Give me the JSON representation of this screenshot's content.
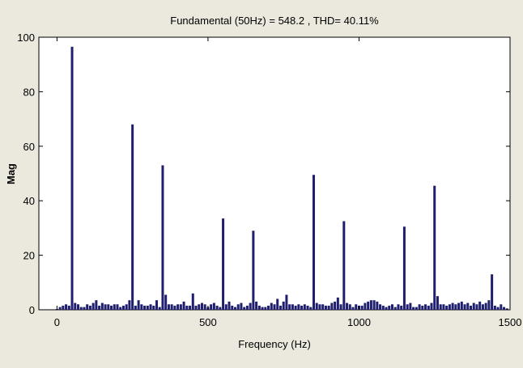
{
  "chart_data": {
    "type": "bar",
    "title": "Fundamental (50Hz) = 548.2 , THD= 40.11%",
    "xlabel": "Frequency (Hz)",
    "ylabel": "Mag",
    "xlim": [
      -60,
      1500
    ],
    "ylim": [
      0,
      100
    ],
    "xticks": [
      0,
      500,
      1000,
      1500
    ],
    "yticks": [
      0,
      20,
      40,
      60,
      80,
      100
    ],
    "grid": false,
    "bar_color": "#1f1f6e",
    "x": [
      0,
      10,
      20,
      30,
      40,
      50,
      60,
      70,
      80,
      90,
      100,
      110,
      120,
      130,
      140,
      150,
      160,
      170,
      180,
      190,
      200,
      210,
      220,
      230,
      240,
      250,
      260,
      270,
      280,
      290,
      300,
      310,
      320,
      330,
      340,
      350,
      360,
      370,
      380,
      390,
      400,
      410,
      420,
      430,
      440,
      450,
      460,
      470,
      480,
      490,
      500,
      510,
      520,
      530,
      540,
      550,
      560,
      570,
      580,
      590,
      600,
      610,
      620,
      630,
      640,
      650,
      660,
      670,
      680,
      690,
      700,
      710,
      720,
      730,
      740,
      750,
      760,
      770,
      780,
      790,
      800,
      810,
      820,
      830,
      840,
      850,
      860,
      870,
      880,
      890,
      900,
      910,
      920,
      930,
      940,
      950,
      960,
      970,
      980,
      990,
      1000,
      1010,
      1020,
      1030,
      1040,
      1050,
      1060,
      1070,
      1080,
      1090,
      1100,
      1110,
      1120,
      1130,
      1140,
      1150,
      1160,
      1170,
      1180,
      1190,
      1200,
      1210,
      1220,
      1230,
      1240,
      1250,
      1260,
      1270,
      1280,
      1290,
      1300,
      1310,
      1320,
      1330,
      1340,
      1350,
      1360,
      1370,
      1380,
      1390,
      1400,
      1410,
      1420,
      1430,
      1440,
      1450,
      1460,
      1470,
      1480,
      1490
    ],
    "values": [
      0.3,
      1.0,
      1.5,
      2.0,
      1.5,
      96.5,
      2.5,
      2.0,
      1.0,
      1.0,
      2.0,
      1.5,
      2.5,
      3.5,
      1.5,
      2.5,
      2.0,
      2.0,
      1.5,
      2.0,
      2.0,
      1.0,
      1.5,
      2.0,
      3.5,
      68.0,
      1.5,
      3.5,
      2.0,
      1.5,
      1.5,
      2.0,
      1.5,
      3.5,
      1.0,
      53.0,
      5.5,
      2.0,
      2.0,
      1.5,
      2.0,
      2.0,
      3.0,
      1.5,
      1.5,
      6.0,
      1.5,
      2.0,
      2.5,
      2.0,
      1.0,
      2.0,
      2.5,
      1.5,
      1.0,
      33.5,
      2.0,
      3.0,
      1.5,
      1.0,
      2.0,
      2.5,
      1.0,
      1.5,
      2.5,
      29.0,
      3.0,
      1.5,
      1.0,
      1.0,
      1.5,
      2.5,
      2.0,
      4.0,
      1.5,
      3.0,
      5.5,
      2.0,
      2.0,
      1.5,
      2.0,
      1.5,
      2.0,
      1.5,
      1.0,
      49.5,
      2.5,
      2.0,
      2.0,
      1.5,
      1.5,
      2.5,
      3.0,
      4.5,
      2.0,
      32.5,
      2.5,
      2.0,
      1.0,
      2.0,
      1.5,
      1.5,
      2.5,
      3.0,
      3.5,
      3.5,
      3.0,
      2.0,
      1.5,
      1.0,
      1.5,
      2.0,
      1.0,
      2.0,
      1.5,
      30.5,
      2.0,
      2.5,
      1.0,
      1.0,
      2.0,
      1.5,
      2.0,
      1.5,
      2.5,
      45.5,
      5.0,
      2.0,
      2.0,
      1.5,
      2.0,
      2.5,
      2.0,
      2.5,
      3.0,
      2.0,
      2.5,
      1.5,
      2.5,
      2.0,
      3.0,
      2.0,
      2.5,
      3.5,
      13.0,
      1.5,
      1.0,
      2.0,
      1.0,
      0.5
    ]
  }
}
